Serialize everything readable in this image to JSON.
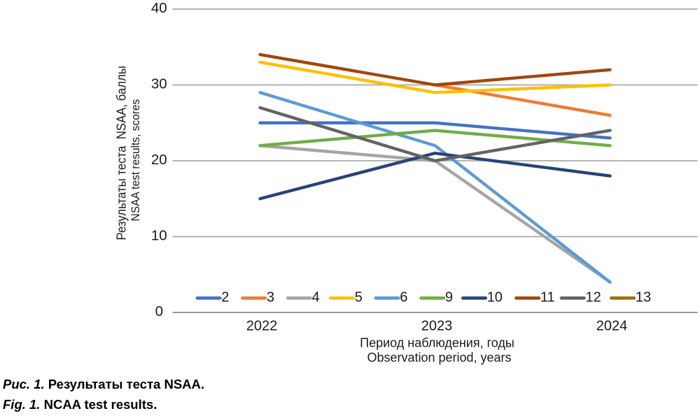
{
  "figure": {
    "caption_ru_prefix": "Рис. 1.",
    "caption_ru_text": " Результаты теста NSAA.",
    "caption_en_prefix": "Fig. 1.",
    "caption_en_text": " NCAA test results."
  },
  "chart_data": {
    "type": "line",
    "title": "",
    "categories": [
      "2022",
      "2023",
      "2024"
    ],
    "series": [
      {
        "name": "2",
        "color": "#4472C4",
        "values": [
          25,
          25,
          23
        ]
      },
      {
        "name": "3",
        "color": "#ED7D31",
        "values": [
          null,
          30,
          26
        ]
      },
      {
        "name": "4",
        "color": "#A5A5A5",
        "values": [
          22,
          20,
          4
        ]
      },
      {
        "name": "5",
        "color": "#FFC000",
        "values": [
          33,
          29,
          30
        ]
      },
      {
        "name": "6",
        "color": "#5B9BD5",
        "values": [
          29,
          22,
          4
        ]
      },
      {
        "name": "9",
        "color": "#70AD47",
        "values": [
          22,
          24,
          22
        ]
      },
      {
        "name": "10",
        "color": "#264478",
        "values": [
          15,
          21,
          18
        ]
      },
      {
        "name": "11",
        "color": "#9E480E",
        "values": [
          34,
          30,
          32
        ]
      },
      {
        "name": "12",
        "color": "#636363",
        "values": [
          27,
          20,
          24
        ]
      },
      {
        "name": "13",
        "color": "#997300",
        "values": [
          null,
          null,
          null
        ]
      }
    ],
    "ylim": [
      0,
      40
    ],
    "yticks": [
      0,
      10,
      20,
      30,
      40
    ],
    "ylabel_ru": "Результаты теста  NSAA, баллы",
    "ylabel_en": "NSAA test results, scores",
    "xlabel_ru": "Период наблюдения, годы",
    "xlabel_en": "Observation period, years",
    "grid": true,
    "legend_position": "bottom",
    "gridline_color": "#9C9C9C",
    "axis_line_color": "#8C8C8C",
    "tick_label_color": "#1a1a1a"
  }
}
